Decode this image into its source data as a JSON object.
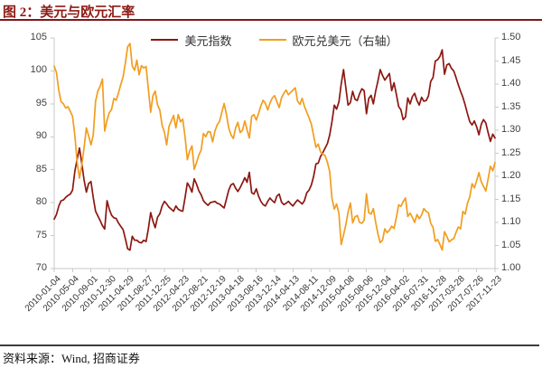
{
  "figure": {
    "title": "图 2：美元与欧元汇率",
    "source": "资料来源：Wind, 招商证券"
  },
  "colors": {
    "title_red": "#8C1A14",
    "rule_red": "#7E181A",
    "usd_line": "#8C1711",
    "eur_line": "#F29D1E",
    "axis_gray": "#C9C9C9",
    "footer_rule": "#3C3C3C"
  },
  "chart_data": {
    "type": "line",
    "title": "美元与欧元汇率",
    "grid": false,
    "legend_position": "top-center",
    "legend": [
      {
        "name": "美元指数",
        "color": "#8C1711"
      },
      {
        "name": "欧元兑美元（右轴）",
        "color": "#F29D1E"
      }
    ],
    "left_axis": {
      "range": [
        70,
        105
      ],
      "ticks": [
        "105",
        "100",
        "95",
        "90",
        "85",
        "80",
        "75",
        "70"
      ]
    },
    "right_axis": {
      "range": [
        1.0,
        1.5
      ],
      "ticks": [
        "1.50",
        "1.45",
        "1.40",
        "1.35",
        "1.30",
        "1.25",
        "1.20",
        "1.15",
        "1.10",
        "1.05",
        "1.00"
      ]
    },
    "x_axis": {
      "tick_interval_days": 120,
      "tick_labels": [
        "2010-01-04",
        "2010-05-04",
        "2010-09-01",
        "2010-12-30",
        "2011-04-29",
        "2011-08-27",
        "2011-12-25",
        "2012-04-23",
        "2012-08-21",
        "2012-12-19",
        "2013-04-18",
        "2013-08-16",
        "2013-12-14",
        "2014-04-13",
        "2014-08-11",
        "2014-12-09",
        "2015-04-08",
        "2015-08-06",
        "2015-12-04",
        "2016-04-02",
        "2016-07-31",
        "2016-11-28",
        "2017-03-28",
        "2017-07-26",
        "2017-11-23"
      ]
    },
    "t_step_months": 0.5,
    "t_total_months": 96,
    "series": [
      {
        "name": "美元指数",
        "axis": "left",
        "color": "#8C1711",
        "values": [
          77.5,
          78.2,
          79.5,
          80.3,
          80.4,
          80.8,
          81.1,
          81.3,
          81.9,
          84.8,
          86.6,
          88.3,
          86.0,
          83.5,
          81.6,
          82.9,
          83.2,
          80.8,
          78.7,
          78.0,
          77.3,
          76.5,
          76.0,
          80.3,
          79.0,
          78.1,
          77.7,
          77.6,
          76.9,
          76.4,
          75.9,
          74.5,
          73.0,
          72.8,
          74.9,
          74.3,
          74.3,
          74.0,
          73.9,
          74.3,
          74.1,
          76.0,
          78.5,
          77.2,
          76.2,
          77.8,
          78.3,
          79.5,
          80.2,
          79.8,
          79.3,
          79.0,
          78.7,
          79.5,
          79.0,
          78.8,
          78.7,
          80.8,
          83.0,
          82.4,
          81.6,
          83.6,
          82.8,
          81.8,
          81.2,
          80.3,
          79.9,
          79.6,
          80.0,
          80.1,
          80.2,
          79.9,
          79.8,
          79.5,
          79.2,
          80.5,
          81.9,
          82.7,
          82.9,
          82.2,
          81.7,
          82.3,
          83.0,
          83.8,
          83.1,
          84.6,
          81.5,
          81.3,
          82.1,
          81.0,
          80.2,
          79.7,
          79.5,
          80.2,
          80.7,
          80.3,
          80.0,
          81.0,
          81.3,
          80.1,
          79.7,
          79.9,
          80.2,
          79.8,
          79.5,
          80.0,
          80.4,
          80.1,
          79.8,
          80.3,
          81.5,
          81.9,
          82.7,
          84.0,
          85.9,
          86.0,
          87.0,
          87.6,
          88.3,
          89.0,
          90.3,
          92.3,
          94.8,
          94.2,
          95.3,
          98.0,
          100.2,
          97.5,
          94.8,
          95.2,
          96.9,
          95.7,
          95.5,
          96.5,
          97.3,
          97.0,
          93.5,
          95.8,
          96.3,
          95.0,
          96.9,
          98.5,
          100.2,
          99.3,
          98.6,
          99.1,
          99.6,
          97.0,
          98.2,
          96.5,
          94.6,
          94.1,
          92.6,
          93.0,
          95.9,
          95.0,
          96.1,
          96.6,
          95.5,
          94.8,
          96.0,
          95.4,
          95.5,
          96.2,
          98.4,
          99.0,
          101.5,
          101.7,
          102.2,
          103.2,
          99.5,
          100.9,
          101.1,
          100.4,
          100.0,
          99.0,
          97.9,
          96.9,
          96.0,
          94.8,
          93.5,
          92.3,
          91.8,
          92.4,
          91.5,
          90.3,
          91.9,
          92.6,
          92.1,
          90.6,
          89.3,
          90.4,
          89.8
        ]
      },
      {
        "name": "欧元兑美元（右轴）",
        "axis": "right",
        "color": "#F29D1E",
        "values": [
          1.439,
          1.425,
          1.386,
          1.362,
          1.357,
          1.348,
          1.351,
          1.341,
          1.33,
          1.288,
          1.23,
          1.196,
          1.224,
          1.261,
          1.305,
          1.288,
          1.268,
          1.289,
          1.363,
          1.385,
          1.395,
          1.411,
          1.298,
          1.322,
          1.338,
          1.345,
          1.369,
          1.365,
          1.381,
          1.399,
          1.416,
          1.446,
          1.481,
          1.488,
          1.439,
          1.43,
          1.452,
          1.42,
          1.44,
          1.435,
          1.438,
          1.39,
          1.339,
          1.375,
          1.385,
          1.355,
          1.344,
          1.31,
          1.296,
          1.268,
          1.308,
          1.32,
          1.332,
          1.305,
          1.334,
          1.318,
          1.324,
          1.285,
          1.236,
          1.255,
          1.266,
          1.215,
          1.23,
          1.246,
          1.257,
          1.293,
          1.286,
          1.297,
          1.296,
          1.275,
          1.298,
          1.312,
          1.319,
          1.338,
          1.358,
          1.335,
          1.305,
          1.29,
          1.282,
          1.305,
          1.317,
          1.295,
          1.3,
          1.32,
          1.301,
          1.283,
          1.33,
          1.334,
          1.322,
          1.336,
          1.353,
          1.365,
          1.358,
          1.344,
          1.359,
          1.37,
          1.375,
          1.362,
          1.349,
          1.37,
          1.38,
          1.387,
          1.377,
          1.382,
          1.387,
          1.392,
          1.363,
          1.356,
          1.369,
          1.352,
          1.339,
          1.327,
          1.313,
          1.288,
          1.263,
          1.27,
          1.253,
          1.248,
          1.245,
          1.23,
          1.21,
          1.152,
          1.129,
          1.14,
          1.119,
          1.052,
          1.073,
          1.095,
          1.122,
          1.142,
          1.099,
          1.112,
          1.115,
          1.1,
          1.098,
          1.105,
          1.162,
          1.121,
          1.118,
          1.13,
          1.101,
          1.075,
          1.056,
          1.062,
          1.086,
          1.078,
          1.083,
          1.092,
          1.087,
          1.11,
          1.138,
          1.135,
          1.145,
          1.153,
          1.113,
          1.12,
          1.111,
          1.1,
          1.117,
          1.108,
          1.116,
          1.13,
          1.124,
          1.121,
          1.098,
          1.089,
          1.059,
          1.063,
          1.052,
          1.04,
          1.08,
          1.07,
          1.058,
          1.062,
          1.065,
          1.078,
          1.09,
          1.086,
          1.124,
          1.118,
          1.142,
          1.155,
          1.184,
          1.175,
          1.191,
          1.208,
          1.188,
          1.178,
          1.168,
          1.195,
          1.222,
          1.212,
          1.23
        ]
      }
    ]
  }
}
